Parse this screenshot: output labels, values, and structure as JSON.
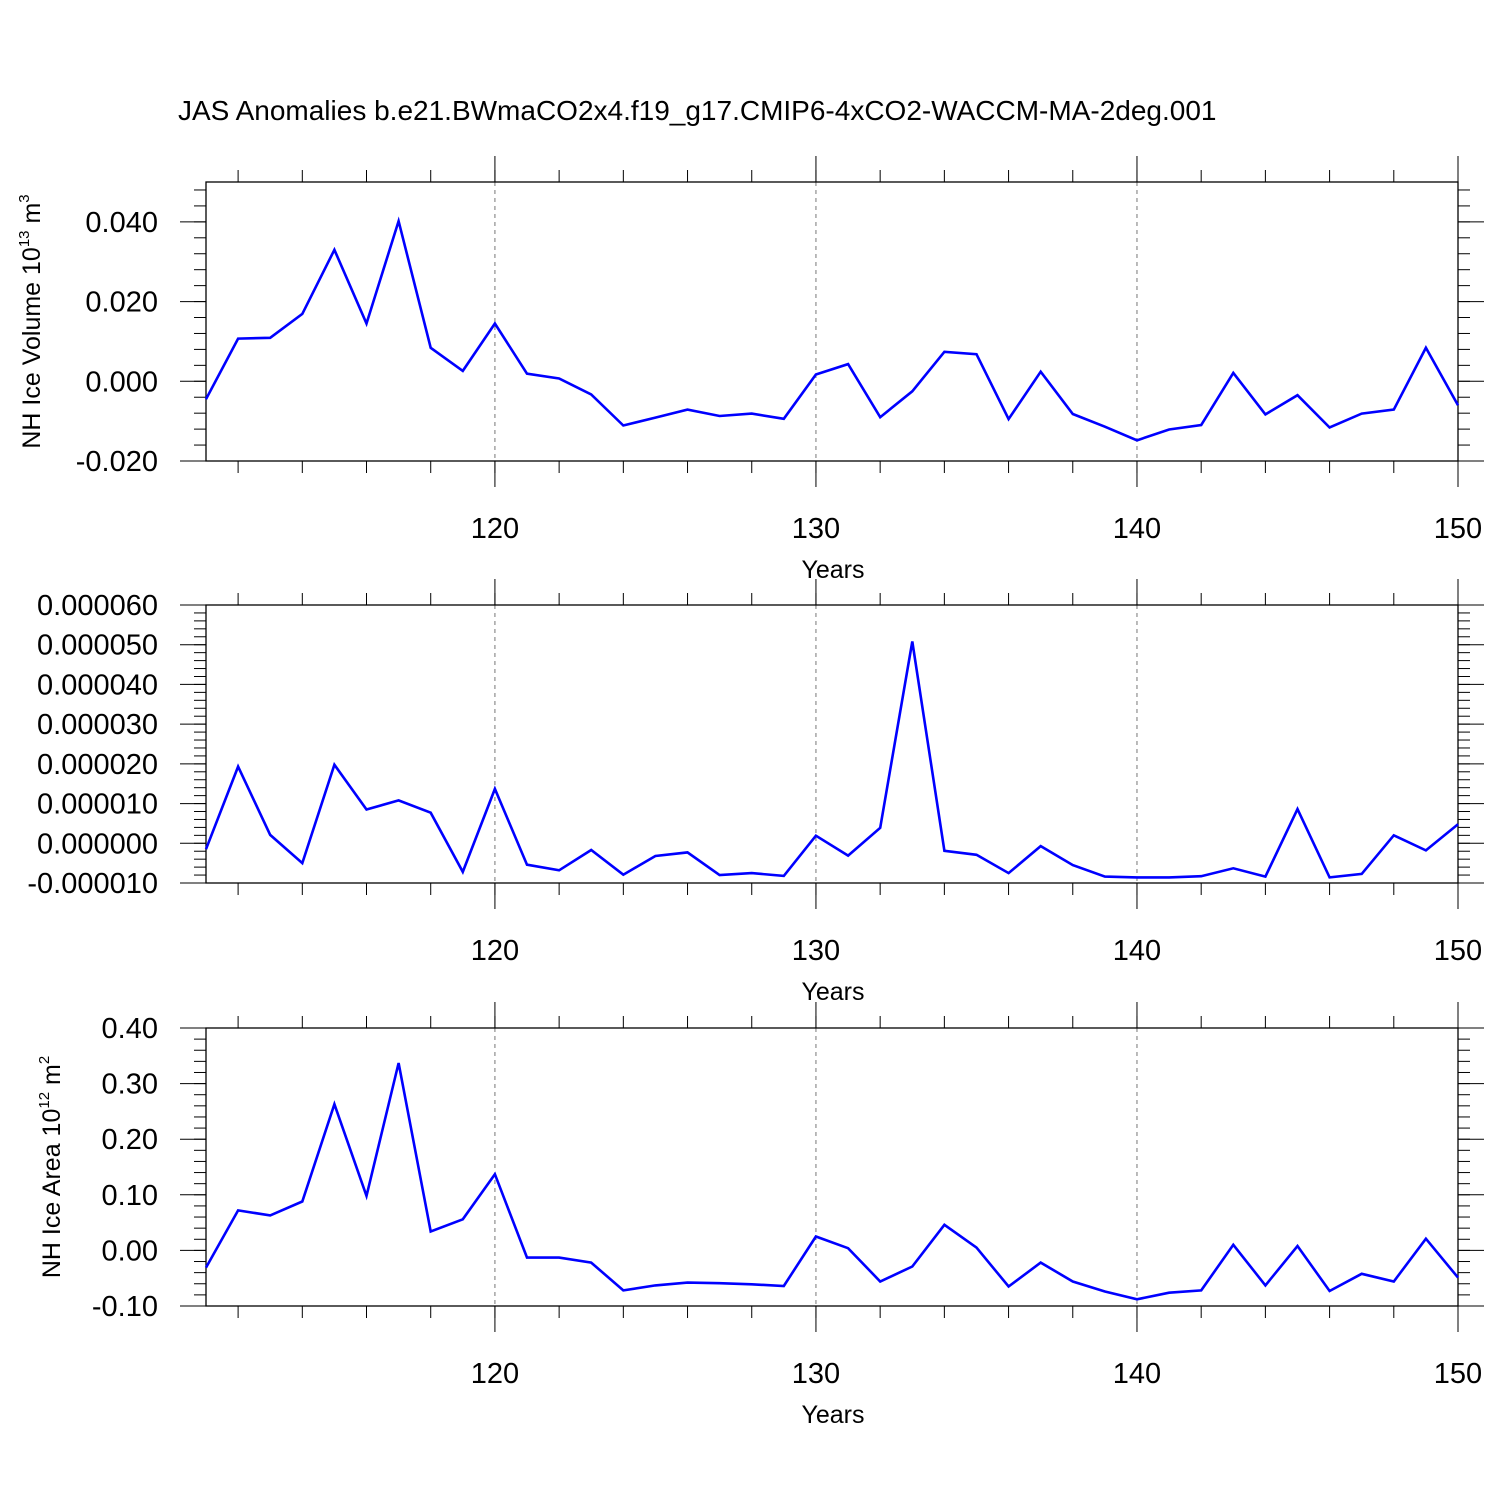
{
  "figure": {
    "title": "JAS Anomalies b.e21.BWmaCO2x4.f19_g17.CMIP6-4xCO2-WACCM-MA-2deg.001"
  },
  "chart_data": [
    {
      "type": "line",
      "title": "",
      "xlabel": "Years",
      "ylabel": {
        "text": "NH Ice Volume 10",
        "sup": "13",
        "unit": " m",
        "unit_sup": "3"
      },
      "xlim": [
        111,
        150
      ],
      "ylim": [
        -0.02,
        0.05
      ],
      "xticks": [
        "120",
        "130",
        "140",
        "150"
      ],
      "yticks": [
        "0.040",
        "0.020",
        "0.000",
        "-0.020"
      ],
      "grid": "x-dashed",
      "x": [
        111,
        112,
        113,
        114,
        115,
        116,
        117,
        118,
        119,
        120,
        121,
        122,
        123,
        124,
        125,
        126,
        127,
        128,
        129,
        130,
        131,
        132,
        133,
        134,
        135,
        136,
        137,
        138,
        139,
        140,
        141,
        142,
        143,
        144,
        145,
        146,
        147,
        148,
        149,
        150
      ],
      "series": [
        {
          "values": [
            -0.0045,
            0.0107,
            0.0109,
            0.0169,
            0.033,
            0.0145,
            0.0402,
            0.0084,
            0.0026,
            0.0145,
            0.0019,
            0.0007,
            -0.0033,
            -0.0111,
            -0.0091,
            -0.0071,
            -0.0087,
            -0.0081,
            -0.0094,
            0.0017,
            0.0043,
            -0.009,
            -0.0025,
            0.0074,
            0.0068,
            -0.0095,
            0.0024,
            -0.0082,
            -0.0114,
            -0.0148,
            -0.0121,
            -0.011,
            0.0021,
            -0.0083,
            -0.0035,
            -0.0116,
            -0.0081,
            -0.0071,
            0.0084,
            -0.006
          ]
        }
      ]
    },
    {
      "type": "line",
      "title": "",
      "xlabel": "Years",
      "ylabel": null,
      "xlim": [
        111,
        150
      ],
      "ylim": [
        -1e-05,
        6e-05
      ],
      "xticks": [
        "120",
        "130",
        "140",
        "150"
      ],
      "yticks": [
        "0.000060",
        "0.000050",
        "0.000040",
        "0.000030",
        "0.000020",
        "0.000010",
        "0.000000",
        "-0.000010"
      ],
      "grid": "x-dashed",
      "x": [
        111,
        112,
        113,
        114,
        115,
        116,
        117,
        118,
        119,
        120,
        121,
        122,
        123,
        124,
        125,
        126,
        127,
        128,
        129,
        130,
        131,
        132,
        133,
        134,
        135,
        136,
        137,
        138,
        139,
        140,
        141,
        142,
        143,
        144,
        145,
        146,
        147,
        148,
        149,
        150
      ],
      "series": [
        {
          "values": [
            -1.5e-06,
            1.93e-05,
            2.1e-06,
            -5e-06,
            1.98e-05,
            8.5e-06,
            1.08e-05,
            7.7e-06,
            -7.2e-06,
            1.37e-05,
            -5.4e-06,
            -6.8e-06,
            -1.7e-06,
            -7.9e-06,
            -3.2e-06,
            -2.3e-06,
            -8e-06,
            -7.5e-06,
            -8.2e-06,
            1.9e-06,
            -3.1e-06,
            3.9e-06,
            5.08e-05,
            -1.9e-06,
            -2.9e-06,
            -7.5e-06,
            -7e-07,
            -5.5e-06,
            -8.4e-06,
            -8.6e-06,
            -8.6e-06,
            -8.3e-06,
            -6.3e-06,
            -8.4e-06,
            8.6e-06,
            -8.6e-06,
            -7.7e-06,
            2e-06,
            -1.8e-06,
            4.8e-06
          ]
        }
      ]
    },
    {
      "type": "line",
      "title": "",
      "xlabel": "Years",
      "ylabel": {
        "text": "NH Ice Area 10",
        "sup": "12",
        "unit": " m",
        "unit_sup": "2"
      },
      "xlim": [
        111,
        150
      ],
      "ylim": [
        -0.1,
        0.4
      ],
      "xticks": [
        "120",
        "130",
        "140",
        "150"
      ],
      "yticks": [
        "0.40",
        "0.30",
        "0.20",
        "0.10",
        "0.00",
        "-0.10"
      ],
      "grid": "x-dashed",
      "x": [
        111,
        112,
        113,
        114,
        115,
        116,
        117,
        118,
        119,
        120,
        121,
        122,
        123,
        124,
        125,
        126,
        127,
        128,
        129,
        130,
        131,
        132,
        133,
        134,
        135,
        136,
        137,
        138,
        139,
        140,
        141,
        142,
        143,
        144,
        145,
        146,
        147,
        148,
        149,
        150
      ],
      "series": [
        {
          "values": [
            -0.031,
            0.072,
            0.063,
            0.088,
            0.263,
            0.098,
            0.337,
            0.034,
            0.056,
            0.137,
            -0.013,
            -0.013,
            -0.022,
            -0.072,
            -0.063,
            -0.058,
            -0.059,
            -0.061,
            -0.064,
            0.025,
            0.004,
            -0.056,
            -0.029,
            0.046,
            0.005,
            -0.065,
            -0.022,
            -0.056,
            -0.074,
            -0.088,
            -0.076,
            -0.072,
            0.01,
            -0.063,
            0.008,
            -0.073,
            -0.042,
            -0.056,
            0.021,
            -0.049
          ]
        }
      ]
    }
  ]
}
